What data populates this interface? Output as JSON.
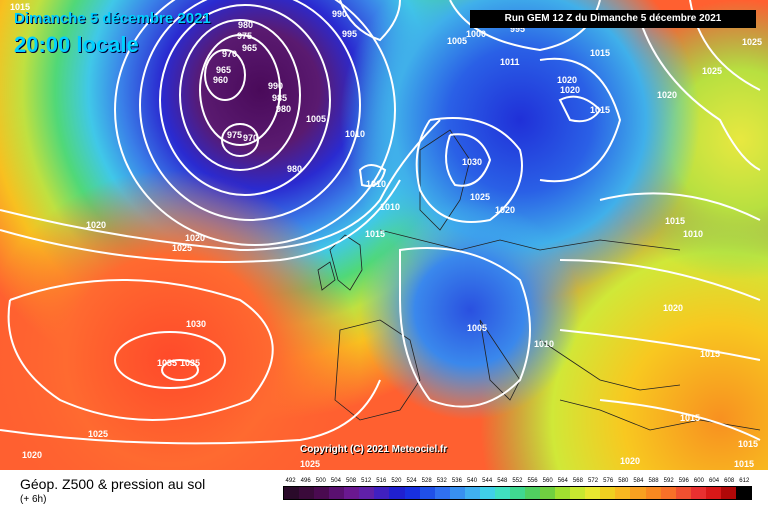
{
  "header": {
    "day": "Dimanche 5 décembre 2021",
    "local_time": "20:00 locale",
    "run_info": "Run GEM 12 Z du Dimanche 5 décembre 2021"
  },
  "map": {
    "copyright": "Copyright (C) 2021 Meteociel.fr",
    "isobar_labels": [
      "1015",
      "980",
      "990",
      "995",
      "1005",
      "1000",
      "995",
      "1011",
      "1025",
      "975",
      "965",
      "970",
      "965",
      "960",
      "990",
      "985",
      "980",
      "980",
      "1005",
      "975",
      "970",
      "1010",
      "1015",
      "1020",
      "1020",
      "1015",
      "1020",
      "1025",
      "1030",
      "1010",
      "1010",
      "1025",
      "1020",
      "1015",
      "1010",
      "1015",
      "1020",
      "1025",
      "1020",
      "1030",
      "1035",
      "1035",
      "1025",
      "1005",
      "1010",
      "1020",
      "1015",
      "1015",
      "1020",
      "1025",
      "1020",
      "1015",
      "1015"
    ],
    "colors": {
      "low_center": "#4a0a5a",
      "deep_blue": "#1a2ad8",
      "blue": "#3a72e8",
      "cyan": "#38c8e8",
      "green": "#40d080",
      "yellow_green": "#b0e040",
      "yellow": "#f0e030",
      "orange": "#ffa020",
      "red_orange": "#ff6030",
      "isobar": "#ffffff"
    }
  },
  "footer": {
    "title": "Géop. Z500 & pression au sol",
    "subtitle": "(+ 6h)",
    "scale_labels": [
      "492",
      "496",
      "500",
      "504",
      "508",
      "512",
      "516",
      "520",
      "524",
      "528",
      "532",
      "536",
      "540",
      "544",
      "548",
      "552",
      "556",
      "560",
      "564",
      "568",
      "572",
      "576",
      "580",
      "584",
      "588",
      "592",
      "596",
      "600",
      "604",
      "608",
      "612"
    ],
    "scale_colors": [
      "#2a0a2a",
      "#3a0a3a",
      "#4a0a50",
      "#5a1070",
      "#6a1890",
      "#6020a8",
      "#4020c0",
      "#2020d0",
      "#1830e0",
      "#2050e8",
      "#3070f0",
      "#3890f0",
      "#40b0f0",
      "#40d0e8",
      "#40e0c0",
      "#40d890",
      "#50d060",
      "#70d040",
      "#a0e030",
      "#c8e830",
      "#e8e830",
      "#f0d020",
      "#f8b820",
      "#f8a020",
      "#f88820",
      "#f87028",
      "#f05030",
      "#e83030",
      "#d81818",
      "#b00808",
      "#000000"
    ]
  }
}
